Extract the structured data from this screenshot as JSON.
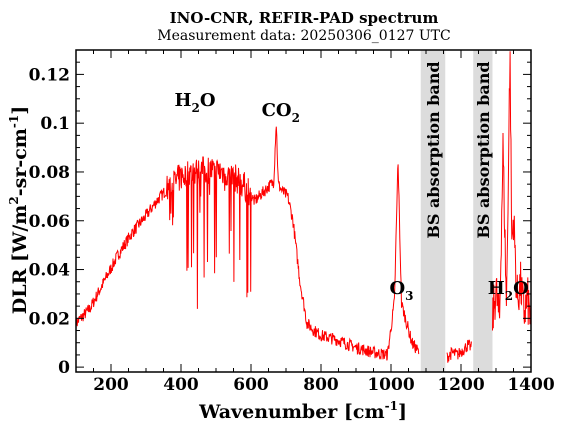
{
  "chart_data": {
    "type": "line",
    "title": "INO-CNR, REFIR-PAD spectrum",
    "subtitle": "Measurement data: 20250306_0127 UTC",
    "xlabel": {
      "main": "Wavenumber [cm",
      "sup": "-1",
      "end": "]"
    },
    "ylabel": {
      "p1": "DLR [W/m",
      "sup1": "2",
      "p2": "-sr-cm",
      "sup2": "-1",
      "p3": "]"
    },
    "xlim": [
      100,
      1400
    ],
    "ylim": [
      -0.002,
      0.13
    ],
    "xticks": [
      200,
      400,
      600,
      800,
      1000,
      1200,
      1400
    ],
    "yticks": [
      0,
      0.02,
      0.04,
      0.06,
      0.08,
      0.1,
      0.12
    ],
    "xtick_labels": [
      "200",
      "400",
      "600",
      "800",
      "1000",
      "1200",
      "1400"
    ],
    "ytick_labels": [
      "0",
      "0.02",
      "0.04",
      "0.06",
      "0.08",
      "0.1",
      "0.12"
    ],
    "grid": false,
    "series": [
      {
        "color": "#ff0000",
        "x": [
          100,
          140,
          180,
          220,
          260,
          300,
          330,
          360,
          400,
          440,
          480,
          520,
          560,
          590,
          610,
          630,
          650,
          665,
          672,
          678,
          690,
          705,
          720,
          740,
          760,
          780,
          800,
          850,
          900,
          950,
          990,
          1010,
          1020,
          1030,
          1045,
          1060,
          1080
        ],
        "y": [
          0.018,
          0.024,
          0.035,
          0.046,
          0.055,
          0.062,
          0.068,
          0.073,
          0.078,
          0.08,
          0.081,
          0.08,
          0.077,
          0.073,
          0.068,
          0.071,
          0.074,
          0.076,
          0.101,
          0.075,
          0.072,
          0.07,
          0.06,
          0.035,
          0.018,
          0.015,
          0.013,
          0.011,
          0.008,
          0.006,
          0.005,
          0.027,
          0.085,
          0.026,
          0.018,
          0.01,
          0.006
        ]
      },
      {
        "color": "#ff0000",
        "x": [
          1160,
          1175,
          1190,
          1205,
          1220,
          1230
        ],
        "y": [
          0.004,
          0.006,
          0.005,
          0.007,
          0.009,
          0.008
        ]
      },
      {
        "color": "#ff0000",
        "x": [
          1290,
          1300,
          1310,
          1320,
          1330,
          1340,
          1345,
          1350,
          1360,
          1370,
          1380,
          1390,
          1400
        ],
        "y": [
          0.02,
          0.032,
          0.018,
          0.09,
          0.024,
          0.13,
          0.05,
          0.062,
          0.028,
          0.034,
          0.022,
          0.028,
          0.018
        ]
      }
    ],
    "absorption_bands": [
      {
        "x0": 1085,
        "x1": 1155,
        "label": "BS absorption band",
        "color": "#dcdcdc"
      },
      {
        "x0": 1235,
        "x1": 1290,
        "label": "BS absorption band",
        "color": "#dcdcdc"
      }
    ],
    "annotations": [
      {
        "main": "H",
        "sub": "2",
        "end": "O",
        "x": 440,
        "y": 0.107
      },
      {
        "main": "CO",
        "sub": "2",
        "end": "",
        "x": 685,
        "y": 0.103
      },
      {
        "main": "O",
        "sub": "3",
        "end": "",
        "x": 1030,
        "y": 0.03
      },
      {
        "main": "H",
        "sub": "2",
        "end": "O",
        "x": 1335,
        "y": 0.03
      }
    ]
  }
}
